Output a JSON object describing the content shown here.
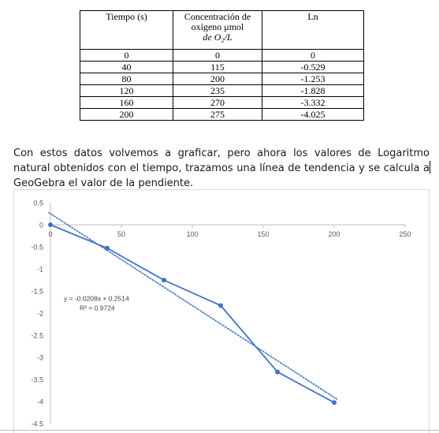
{
  "table": {
    "headers": {
      "tiempo": "Tiempo (s)",
      "concentracion_line1": "Concentración de",
      "concentracion_line2": "oxígeno μmol",
      "concentracion_line3": "de O₂/L",
      "ln": "Ln"
    },
    "rows": [
      [
        "0",
        "0",
        "0"
      ],
      [
        "40",
        "115",
        "-0.529"
      ],
      [
        "80",
        "200",
        "-1.253"
      ],
      [
        "120",
        "235",
        "-1.828"
      ],
      [
        "160",
        "270",
        "-3.332"
      ],
      [
        "200",
        "275",
        "-4.025"
      ]
    ]
  },
  "paragraph": "Con estos datos volvemos a graficar, pero ahora los valores de Logaritmo natural obtenidos con el tiempo, trazamos una línea de tendencia y se calcula a GeoGebra el valor de la pendiente.",
  "chart_data": {
    "type": "scatter",
    "x": [
      0,
      40,
      80,
      120,
      160,
      200
    ],
    "series": [
      {
        "values": [
          0,
          -0.529,
          -1.253,
          -1.828,
          -3.332,
          -4.025
        ],
        "color": "#4472c4"
      }
    ],
    "trendline": {
      "slope": -0.0208,
      "intercept": 0.2514,
      "color": "#4472c4",
      "style": "dotted"
    },
    "annotation": {
      "equation": "y = -0.0208x + 0.2514",
      "r2": "R² = 0.9724"
    },
    "xlim": [
      0,
      250
    ],
    "ylim": [
      -4.5,
      0.5
    ],
    "x_ticks": [
      0,
      50,
      100,
      150,
      200,
      250
    ],
    "y_ticks": [
      0.5,
      0,
      -0.5,
      -1,
      -1.5,
      -2,
      -2.5,
      -3,
      -3.5,
      -4,
      -4.5
    ],
    "grid": false
  },
  "colors": {
    "series": "#4472c4",
    "axis": "#bfbfbf",
    "tick_text": "#595959"
  }
}
